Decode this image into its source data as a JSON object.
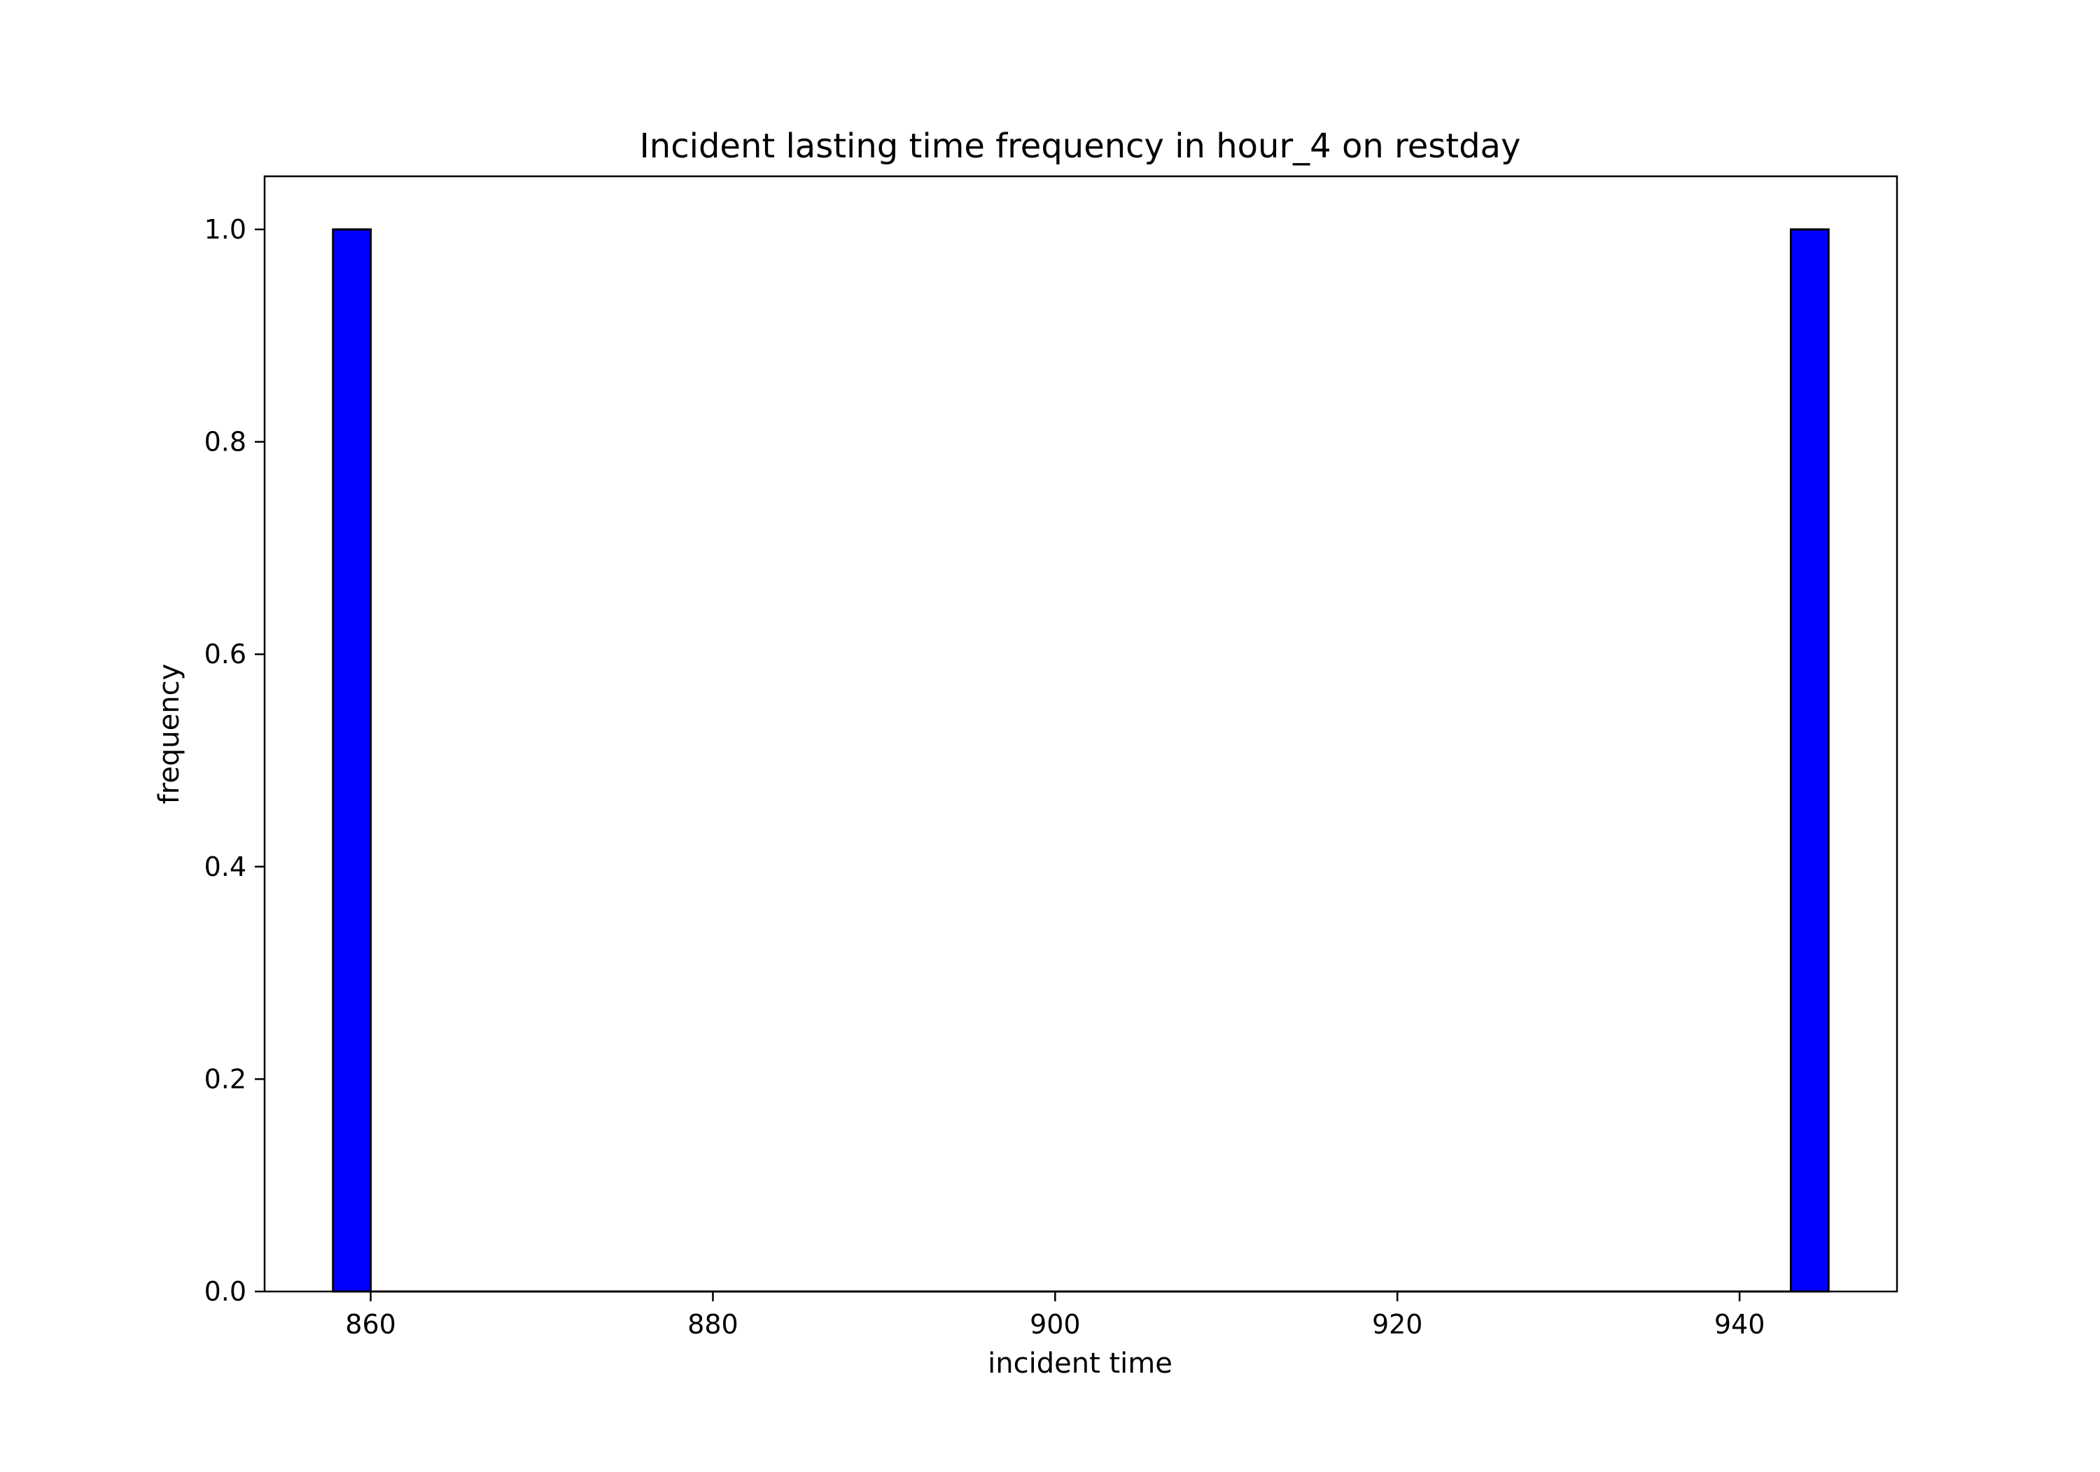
{
  "chart_data": {
    "type": "bar",
    "title": "Incident lasting time frequency in hour_4 on restday",
    "xlabel": "incident time",
    "ylabel": "frequency",
    "xlim": [
      853.8,
      949.2
    ],
    "ylim": [
      0.0,
      1.05
    ],
    "x_ticks": [
      860,
      880,
      900,
      920,
      940
    ],
    "x_tick_labels": [
      "860",
      "880",
      "900",
      "920",
      "940"
    ],
    "y_ticks": [
      0.0,
      0.2,
      0.4,
      0.6,
      0.8,
      1.0
    ],
    "y_tick_labels": [
      "0.0",
      "0.2",
      "0.4",
      "0.6",
      "0.8",
      "1.0"
    ],
    "bin_width": 2.18,
    "bins": [
      {
        "x_start": 857.8,
        "x_end": 860.0,
        "value": 1
      },
      {
        "x_start": 943.0,
        "x_end": 945.2,
        "value": 1
      }
    ],
    "bar_color": "#0000ff",
    "edge_color": "#000000",
    "grid": false,
    "legend": "none"
  }
}
